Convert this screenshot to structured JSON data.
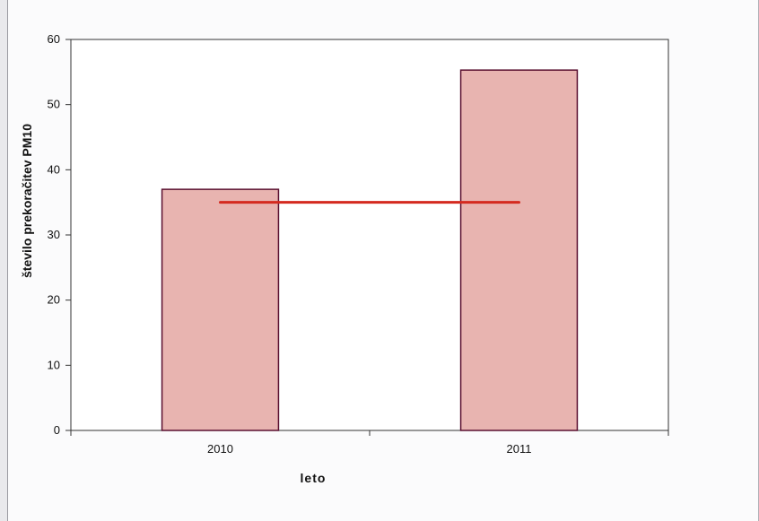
{
  "chart_data": {
    "type": "bar",
    "categories": [
      "2010",
      "2011"
    ],
    "series": [
      {
        "values": [
          37,
          55.3
        ],
        "color": "#e8b4b0",
        "edge": "#5a1030"
      }
    ],
    "reference_line": {
      "value": 35,
      "color": "#d42a1f"
    },
    "title": "",
    "xlabel": "leto",
    "ylabel": "število prekoračitev PM10",
    "ylim": [
      0,
      60
    ],
    "yticks": [
      "0",
      "10",
      "20",
      "30",
      "40",
      "50",
      "60"
    ],
    "grid": false,
    "legend": "none"
  }
}
